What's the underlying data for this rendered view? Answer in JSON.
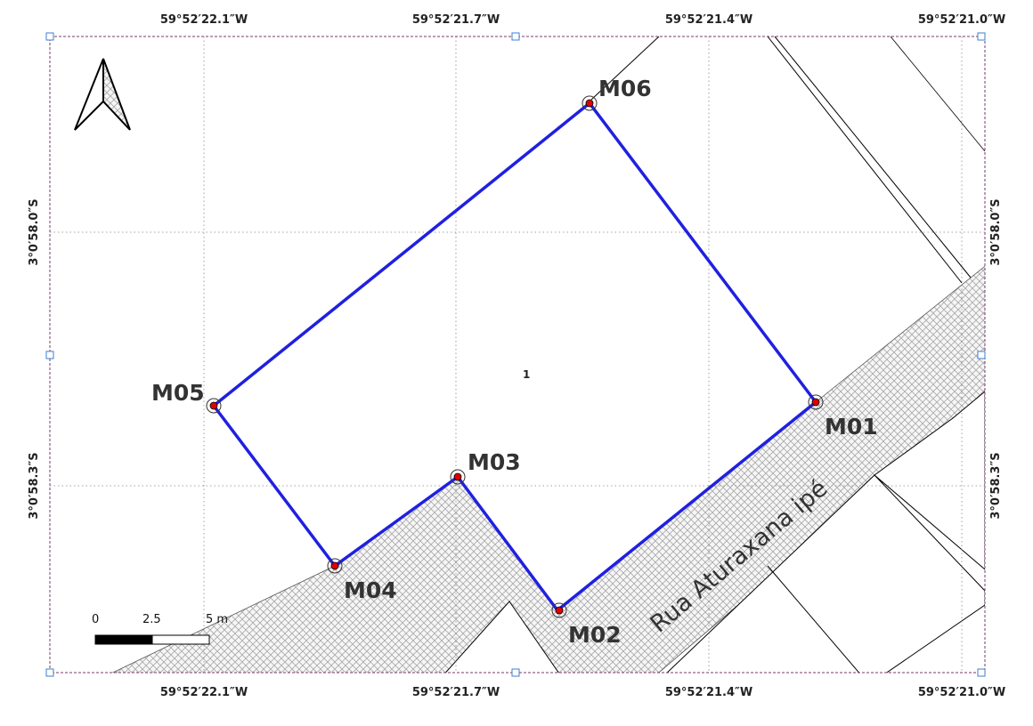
{
  "map": {
    "top_coords": [
      "59°52′22.1″W",
      "59°52′21.7″W",
      "59°52′21.4″W",
      "59°52′21.0″W"
    ],
    "bottom_coords": [
      "59°52′22.1″W",
      "59°52′21.7″W",
      "59°52′21.4″W",
      "59°52′21.0″W"
    ],
    "left_coords": [
      "3°0′58.0″S",
      "3°0′58.3″S"
    ],
    "right_coords": [
      "3°0′58.0″S",
      "3°0′58.3″S"
    ],
    "road_name": "Rua Aturaxana ipé",
    "parcel_id": "1",
    "markers": [
      "M01",
      "M02",
      "M03",
      "M04",
      "M05",
      "M06"
    ],
    "scale_bar": {
      "labels": [
        "0",
        "2.5",
        "5 m"
      ]
    },
    "north_arrow": "north-arrow-icon",
    "colors": {
      "boundary": "#2020e0",
      "marker_fill": "#e00000",
      "road_hatch": "#a8a8a8",
      "grid": "#888888"
    }
  }
}
